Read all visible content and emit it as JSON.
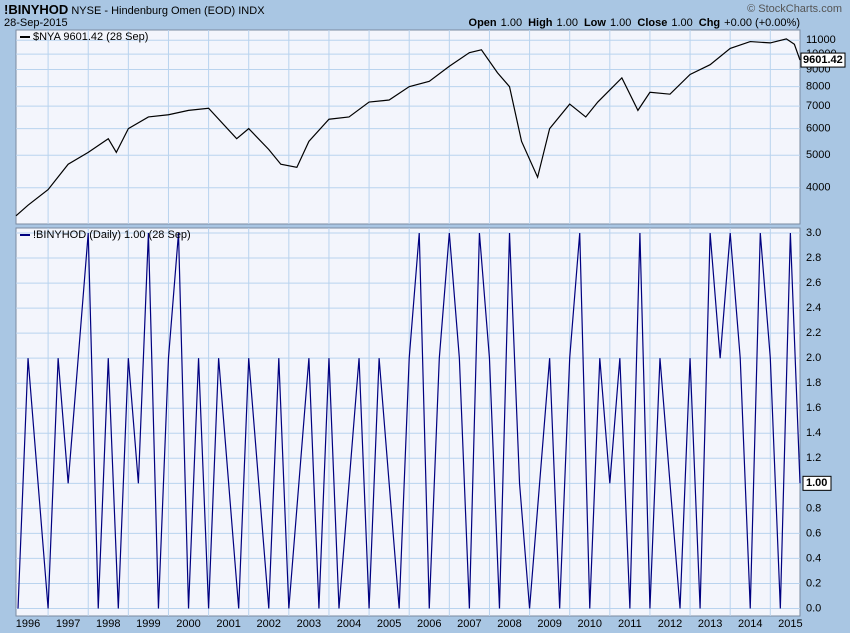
{
  "header": {
    "symbol": "!BINYHOD",
    "description": "NYSE - Hindenburg Omen (EOD)",
    "kind": "INDX",
    "date": "28-Sep-2015",
    "watermark": "© StockCharts.com",
    "quote": [
      {
        "label": "Open",
        "value": "1.00"
      },
      {
        "label": "High",
        "value": "1.00"
      },
      {
        "label": "Low",
        "value": "1.00"
      },
      {
        "label": "Close",
        "value": "1.00"
      },
      {
        "label": "Chg",
        "value": "+0.00 (+0.00%)"
      }
    ]
  },
  "chart_data": [
    {
      "type": "line",
      "log": true,
      "grid": true,
      "x": [
        1996.2,
        1996.5,
        1997.0,
        1997.5,
        1998.0,
        1998.5,
        1998.7,
        1999.0,
        1999.5,
        2000.0,
        2000.5,
        2001.0,
        2001.7,
        2002.0,
        2002.5,
        2002.8,
        2003.2,
        2003.5,
        2004.0,
        2004.5,
        2005.0,
        2005.5,
        2006.0,
        2006.5,
        2007.0,
        2007.5,
        2007.8,
        2008.2,
        2008.5,
        2008.8,
        2009.2,
        2009.5,
        2010.0,
        2010.4,
        2010.7,
        2011.3,
        2011.7,
        2012.0,
        2012.5,
        2013.0,
        2013.5,
        2014.0,
        2014.5,
        2015.0,
        2015.4,
        2015.6,
        2015.74
      ],
      "series": [
        {
          "name": "$NYA 9601.42 (28 Sep)",
          "color": "#000000",
          "values": [
            3300,
            3550,
            3950,
            4700,
            5100,
            5600,
            5100,
            6000,
            6500,
            6600,
            6800,
            6900,
            5600,
            6000,
            5200,
            4700,
            4600,
            5500,
            6400,
            6500,
            7200,
            7300,
            8000,
            8300,
            9200,
            10100,
            10300,
            8800,
            8000,
            5500,
            4300,
            6000,
            7100,
            6500,
            7200,
            8500,
            6800,
            7700,
            7600,
            8700,
            9300,
            10400,
            10900,
            10800,
            11100,
            10700,
            9601.42
          ]
        }
      ],
      "xlim": [
        1996.2,
        2015.74
      ],
      "xticks": [
        1996,
        1997,
        1998,
        1999,
        2000,
        2001,
        2002,
        2003,
        2004,
        2005,
        2006,
        2007,
        2008,
        2009,
        2010,
        2011,
        2012,
        2013,
        2014,
        2015
      ],
      "ylim": [
        3120,
        11800
      ],
      "yticks": [
        4000,
        5000,
        6000,
        7000,
        8000,
        9000,
        10000,
        11000
      ]
    },
    {
      "type": "line",
      "grid": true,
      "x": [
        1996.25,
        1996.5,
        1996.75,
        1997.0,
        1997.25,
        1997.5,
        1997.75,
        1998.0,
        1998.25,
        1998.5,
        1998.75,
        1999.0,
        1999.25,
        1999.5,
        1999.75,
        2000.0,
        2000.25,
        2000.5,
        2000.75,
        2001.0,
        2001.25,
        2001.5,
        2001.75,
        2002.0,
        2002.25,
        2002.5,
        2002.75,
        2003.0,
        2003.25,
        2003.5,
        2003.75,
        2004.0,
        2004.25,
        2004.5,
        2004.75,
        2005.0,
        2005.25,
        2005.5,
        2005.75,
        2006.0,
        2006.25,
        2006.5,
        2006.75,
        2007.0,
        2007.25,
        2007.5,
        2007.75,
        2008.0,
        2008.25,
        2008.5,
        2008.75,
        2009.0,
        2009.25,
        2009.5,
        2009.75,
        2010.0,
        2010.25,
        2010.5,
        2010.75,
        2011.0,
        2011.25,
        2011.5,
        2011.75,
        2012.0,
        2012.25,
        2012.5,
        2012.75,
        2013.0,
        2013.25,
        2013.5,
        2013.75,
        2014.0,
        2014.25,
        2014.5,
        2014.75,
        2015.0,
        2015.25,
        2015.5,
        2015.74
      ],
      "series": [
        {
          "name": "!BINYHOD (Daily) 1.00 (28 Sep)",
          "color": "#000080",
          "values": [
            0,
            2,
            1,
            0,
            2,
            1,
            2,
            3,
            0,
            2,
            0,
            2,
            1,
            3,
            0,
            2,
            3,
            0,
            2,
            0,
            2,
            1,
            0,
            2,
            1,
            0,
            2,
            0,
            1,
            2,
            0,
            2,
            0,
            1,
            2,
            0,
            2,
            1,
            0,
            2,
            3,
            0,
            2,
            3,
            2,
            0,
            3,
            2,
            0,
            3,
            1,
            0,
            1,
            2,
            0,
            2,
            3,
            0,
            2,
            1,
            2,
            0,
            3,
            0,
            2,
            1,
            0,
            2,
            0,
            3,
            2,
            3,
            2,
            0,
            3,
            2,
            0,
            3,
            1
          ]
        }
      ],
      "xlim": [
        1996.2,
        2015.74
      ],
      "xticks": [
        1996,
        1997,
        1998,
        1999,
        2000,
        2001,
        2002,
        2003,
        2004,
        2005,
        2006,
        2007,
        2008,
        2009,
        2010,
        2011,
        2012,
        2013,
        2014,
        2015
      ],
      "ylim": [
        -0.06,
        3.04
      ],
      "yticks": [
        {
          "value": 0,
          "label": "0.0"
        },
        0.2,
        0.4,
        0.6,
        0.8,
        {
          "value": 1,
          "label": "1.00"
        },
        1.2,
        1.4,
        1.6,
        1.8,
        {
          "value": 2,
          "label": "2.0"
        },
        2.2,
        2.4,
        2.6,
        2.8,
        {
          "value": 3,
          "label": "3.0"
        }
      ]
    }
  ]
}
